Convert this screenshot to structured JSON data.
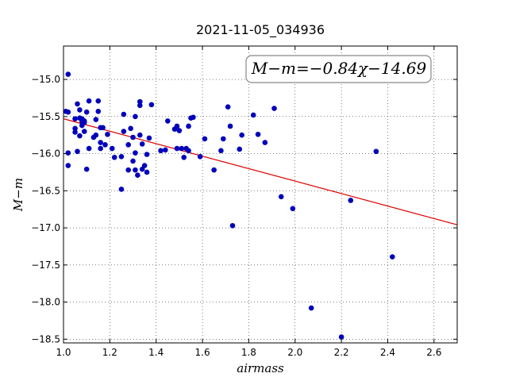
{
  "chart_data": {
    "type": "scatter",
    "title": "2021-11-05_034936",
    "xlabel": "airmass",
    "ylabel": "M−m",
    "xlim": [
      1.0,
      2.7
    ],
    "ylim": [
      -18.55,
      -14.55
    ],
    "x_ticks": [
      "1.0",
      "1.2",
      "1.4",
      "1.6",
      "1.8",
      "2.0",
      "2.2",
      "2.4",
      "2.6"
    ],
    "y_ticks": [
      "−15.0",
      "−15.5",
      "−16.0",
      "−16.5",
      "−17.0",
      "−17.5",
      "−18.0",
      "−18.5"
    ],
    "grid": true,
    "annotation": "M−m=−0.84χ−14.69",
    "fit": {
      "slope": -0.84,
      "intercept": -14.69,
      "color": "#dd0000"
    },
    "point_color": "#0000bb",
    "points": [
      [
        1.01,
        -15.43
      ],
      [
        1.02,
        -15.44
      ],
      [
        1.02,
        -14.93
      ],
      [
        1.02,
        -15.99
      ],
      [
        1.02,
        -16.16
      ],
      [
        1.05,
        -15.66
      ],
      [
        1.05,
        -15.71
      ],
      [
        1.05,
        -15.53
      ],
      [
        1.06,
        -15.97
      ],
      [
        1.06,
        -15.33
      ],
      [
        1.07,
        -15.52
      ],
      [
        1.07,
        -15.76
      ],
      [
        1.07,
        -15.41
      ],
      [
        1.08,
        -15.57
      ],
      [
        1.08,
        -15.62
      ],
      [
        1.08,
        -15.53
      ],
      [
        1.09,
        -15.56
      ],
      [
        1.09,
        -15.7
      ],
      [
        1.09,
        -15.58
      ],
      [
        1.1,
        -16.21
      ],
      [
        1.1,
        -15.44
      ],
      [
        1.11,
        -15.29
      ],
      [
        1.11,
        -15.93
      ],
      [
        1.13,
        -15.78
      ],
      [
        1.14,
        -15.54
      ],
      [
        1.14,
        -15.75
      ],
      [
        1.15,
        -15.29
      ],
      [
        1.15,
        -15.43
      ],
      [
        1.16,
        -15.65
      ],
      [
        1.16,
        -15.85
      ],
      [
        1.16,
        -15.93
      ],
      [
        1.17,
        -15.65
      ],
      [
        1.18,
        -15.88
      ],
      [
        1.19,
        -15.74
      ],
      [
        1.21,
        -15.93
      ],
      [
        1.22,
        -16.05
      ],
      [
        1.25,
        -16.48
      ],
      [
        1.25,
        -16.04
      ],
      [
        1.26,
        -15.47
      ],
      [
        1.26,
        -15.7
      ],
      [
        1.28,
        -16.22
      ],
      [
        1.28,
        -15.88
      ],
      [
        1.29,
        -15.66
      ],
      [
        1.3,
        -15.78
      ],
      [
        1.3,
        -16.1
      ],
      [
        1.31,
        -16.22
      ],
      [
        1.31,
        -15.5
      ],
      [
        1.31,
        -15.99
      ],
      [
        1.32,
        -16.29
      ],
      [
        1.33,
        -15.3
      ],
      [
        1.33,
        -15.35
      ],
      [
        1.33,
        -15.75
      ],
      [
        1.34,
        -16.21
      ],
      [
        1.34,
        -15.87
      ],
      [
        1.35,
        -16.16
      ],
      [
        1.36,
        -16.01
      ],
      [
        1.36,
        -16.25
      ],
      [
        1.37,
        -15.79
      ],
      [
        1.38,
        -15.34
      ],
      [
        1.42,
        -15.96
      ],
      [
        1.44,
        -15.95
      ],
      [
        1.45,
        -15.56
      ],
      [
        1.48,
        -15.67
      ],
      [
        1.49,
        -15.63
      ],
      [
        1.49,
        -15.93
      ],
      [
        1.5,
        -15.69
      ],
      [
        1.51,
        -15.93
      ],
      [
        1.52,
        -16.05
      ],
      [
        1.53,
        -15.93
      ],
      [
        1.54,
        -15.96
      ],
      [
        1.54,
        -15.63
      ],
      [
        1.55,
        -15.52
      ],
      [
        1.56,
        -15.51
      ],
      [
        1.59,
        -16.04
      ],
      [
        1.61,
        -15.8
      ],
      [
        1.65,
        -16.22
      ],
      [
        1.68,
        -15.96
      ],
      [
        1.69,
        -15.8
      ],
      [
        1.71,
        -15.37
      ],
      [
        1.72,
        -15.63
      ],
      [
        1.73,
        -16.97
      ],
      [
        1.76,
        -15.94
      ],
      [
        1.77,
        -15.75
      ],
      [
        1.82,
        -15.48
      ],
      [
        1.84,
        -15.74
      ],
      [
        1.87,
        -15.85
      ],
      [
        1.91,
        -15.39
      ],
      [
        1.94,
        -16.58
      ],
      [
        1.99,
        -16.74
      ],
      [
        2.07,
        -18.08
      ],
      [
        2.2,
        -18.47
      ],
      [
        2.24,
        -16.63
      ],
      [
        2.35,
        -15.97
      ],
      [
        2.42,
        -17.39
      ]
    ]
  }
}
